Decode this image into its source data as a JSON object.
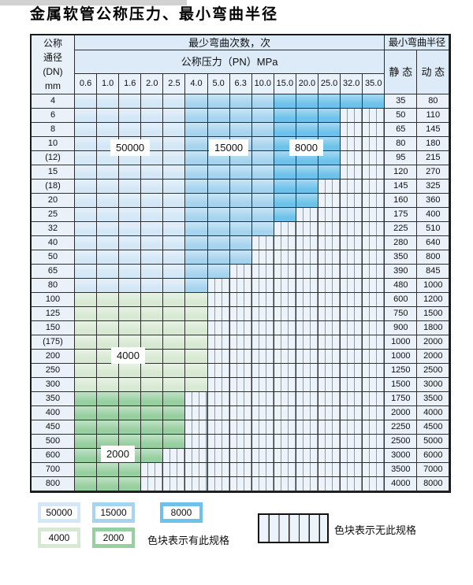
{
  "title": "金属软管公称压力、最小弯曲半径",
  "colors": {
    "blue_light": "#d3e7f6",
    "blue_medium": "#a6d4ef",
    "blue_dark": "#6ec1ea",
    "green_light": "#d7e9d2",
    "green_dark": "#97cfa0",
    "hatch_bg": "#edf3fa",
    "header_bg": "#dcebf7"
  },
  "blue_breaks": {
    "light_max": 5,
    "medium_max": 9
  },
  "table": {
    "corner": "公称\n通径\n(DN)\nmm",
    "bend_cycles_header": "最少弯曲次数，次",
    "radius_header": "最小弯曲半径",
    "pressure_header": "公称压力（PN）MPa",
    "static_label": "静 态",
    "dynamic_label": "动 态",
    "pressures": [
      "0.6",
      "1.0",
      "1.6",
      "2.0",
      "2.5",
      "4.0",
      "5.0",
      "6.3",
      "10.0",
      "15.0",
      "20.0",
      "25.0",
      "32.0",
      "35.0"
    ],
    "rows": [
      {
        "dn": "4",
        "colored": 14,
        "palette": "blue",
        "static": "35",
        "dynamic": "80"
      },
      {
        "dn": "6",
        "colored": 12,
        "palette": "blue",
        "static": "50",
        "dynamic": "110"
      },
      {
        "dn": "8",
        "colored": 12,
        "palette": "blue",
        "static": "65",
        "dynamic": "145"
      },
      {
        "dn": "10",
        "colored": 12,
        "palette": "blue",
        "static": "80",
        "dynamic": "180"
      },
      {
        "dn": "(12)",
        "colored": 12,
        "palette": "blue",
        "static": "95",
        "dynamic": "215"
      },
      {
        "dn": "15",
        "colored": 12,
        "palette": "blue",
        "static": "120",
        "dynamic": "270"
      },
      {
        "dn": "(18)",
        "colored": 11,
        "palette": "blue",
        "static": "145",
        "dynamic": "325"
      },
      {
        "dn": "20",
        "colored": 11,
        "palette": "blue",
        "static": "160",
        "dynamic": "360"
      },
      {
        "dn": "25",
        "colored": 10,
        "palette": "blue",
        "static": "175",
        "dynamic": "400"
      },
      {
        "dn": "32",
        "colored": 9,
        "palette": "blue",
        "static": "225",
        "dynamic": "510"
      },
      {
        "dn": "40",
        "colored": 8,
        "palette": "blue",
        "static": "280",
        "dynamic": "640"
      },
      {
        "dn": "50",
        "colored": 8,
        "palette": "blue",
        "static": "350",
        "dynamic": "800"
      },
      {
        "dn": "65",
        "colored": 7,
        "palette": "blue",
        "static": "390",
        "dynamic": "845"
      },
      {
        "dn": "80",
        "colored": 6,
        "palette": "blue",
        "static": "480",
        "dynamic": "1000"
      },
      {
        "dn": "100",
        "colored": 6,
        "palette": "green_light",
        "static": "600",
        "dynamic": "1200"
      },
      {
        "dn": "125",
        "colored": 6,
        "palette": "green_light",
        "static": "750",
        "dynamic": "1500"
      },
      {
        "dn": "150",
        "colored": 6,
        "palette": "green_light",
        "static": "900",
        "dynamic": "1800"
      },
      {
        "dn": "(175)",
        "colored": 6,
        "palette": "green_light",
        "static": "1000",
        "dynamic": "2000"
      },
      {
        "dn": "200",
        "colored": 6,
        "palette": "green_light",
        "static": "1000",
        "dynamic": "2000"
      },
      {
        "dn": "250",
        "colored": 6,
        "palette": "green_light",
        "static": "1250",
        "dynamic": "2500"
      },
      {
        "dn": "300",
        "colored": 6,
        "palette": "green_light",
        "static": "1500",
        "dynamic": "3000"
      },
      {
        "dn": "350",
        "colored": 5,
        "palette": "green_dark",
        "static": "1750",
        "dynamic": "3500"
      },
      {
        "dn": "400",
        "colored": 5,
        "palette": "green_dark",
        "static": "2000",
        "dynamic": "4000"
      },
      {
        "dn": "450",
        "colored": 5,
        "palette": "green_dark",
        "static": "2250",
        "dynamic": "4500"
      },
      {
        "dn": "500",
        "colored": 5,
        "palette": "green_dark",
        "static": "2500",
        "dynamic": "5000"
      },
      {
        "dn": "600",
        "colored": 4,
        "palette": "green_dark",
        "static": "3000",
        "dynamic": "6000"
      },
      {
        "dn": "700",
        "colored": 3,
        "palette": "green_dark",
        "static": "3500",
        "dynamic": "7000"
      },
      {
        "dn": "800",
        "colored": 3,
        "palette": "green_dark",
        "static": "4000",
        "dynamic": "8000"
      }
    ]
  },
  "region_labels": {
    "r50000": "50000",
    "r15000": "15000",
    "r8000": "8000",
    "r4000": "4000",
    "r2000": "2000"
  },
  "legend": {
    "s50000": "50000",
    "s15000": "15000",
    "s8000": "8000",
    "s4000": "4000",
    "s2000": "2000",
    "has_spec_text": "色块表示有此规格",
    "no_spec_text": "色块表示无此规格"
  }
}
